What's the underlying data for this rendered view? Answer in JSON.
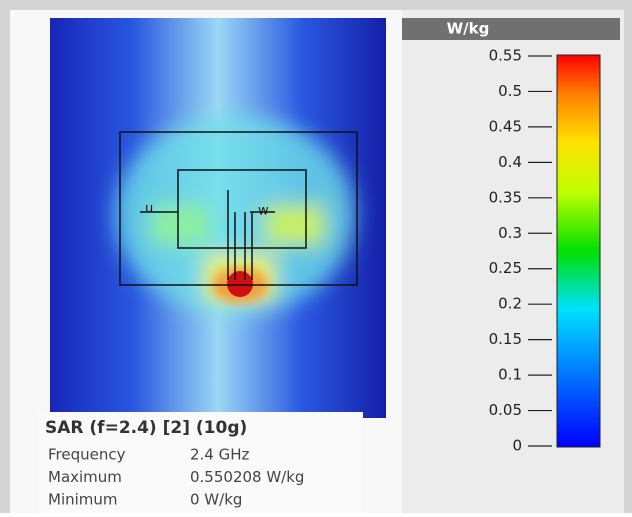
{
  "colorbar": {
    "unit": "W/kg",
    "min": 0,
    "max": 0.55,
    "ticks": [
      0,
      0.05,
      0.1,
      0.15,
      0.2,
      0.25,
      0.3,
      0.35,
      0.4,
      0.45,
      0.5,
      0.55
    ]
  },
  "labels": {
    "port_left": "u",
    "port_right": "w"
  },
  "info": {
    "title": "SAR (f=2.4) [2] (10g)",
    "rows": [
      [
        "Frequency",
        "2.4 GHz"
      ],
      [
        "Maximum",
        "0.550208 W/kg"
      ],
      [
        "Minimum",
        "0 W/kg"
      ]
    ]
  }
}
